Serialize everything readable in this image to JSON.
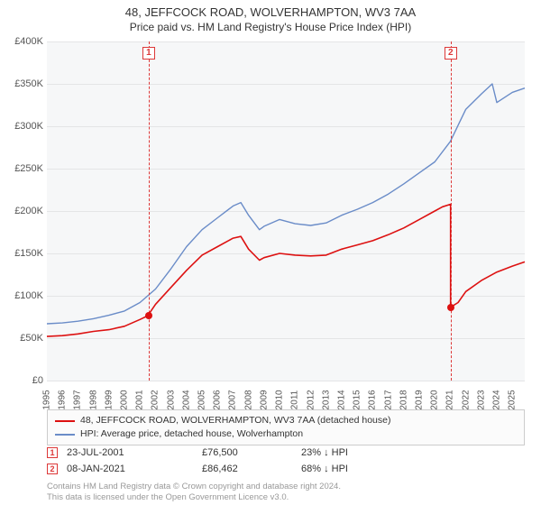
{
  "title": "48, JEFFCOCK ROAD, WOLVERHAMPTON, WV3 7AA",
  "subtitle": "Price paid vs. HM Land Registry's House Price Index (HPI)",
  "chart": {
    "background": "#f6f7f8",
    "grid_color": "#e4e5e6",
    "xlim": [
      1995,
      2025.8
    ],
    "ylim": [
      0,
      400000
    ],
    "ytick_step": 50000,
    "yticks": [
      0,
      50000,
      100000,
      150000,
      200000,
      250000,
      300000,
      350000,
      400000
    ],
    "ytick_labels": [
      "£0",
      "£50K",
      "£100K",
      "£150K",
      "£200K",
      "£250K",
      "£300K",
      "£350K",
      "£400K"
    ],
    "xticks": [
      1995,
      1996,
      1997,
      1998,
      1999,
      2000,
      2001,
      2002,
      2003,
      2004,
      2005,
      2006,
      2007,
      2008,
      2009,
      2010,
      2011,
      2012,
      2013,
      2014,
      2015,
      2016,
      2017,
      2018,
      2019,
      2020,
      2021,
      2022,
      2023,
      2024,
      2025
    ],
    "series": [
      {
        "name": "price_paid",
        "color": "#dd1111",
        "width": 1.6,
        "x": [
          1995,
          1996,
          1997,
          1998,
          1999,
          2000,
          2001,
          2001.5,
          2002,
          2003,
          2004,
          2005,
          2006,
          2007,
          2007.5,
          2008,
          2008.7,
          2009,
          2010,
          2011,
          2012,
          2013,
          2014,
          2015,
          2016,
          2017,
          2018,
          2019,
          2020,
          2020.5,
          2021.02,
          2021.02,
          2021.5,
          2022,
          2023,
          2024,
          2025,
          2025.8
        ],
        "y": [
          52000,
          53000,
          55000,
          58000,
          60000,
          64000,
          72000,
          76500,
          90000,
          110000,
          130000,
          148000,
          158000,
          168000,
          170000,
          155000,
          142000,
          145000,
          150000,
          148000,
          147000,
          148000,
          155000,
          160000,
          165000,
          172000,
          180000,
          190000,
          200000,
          205000,
          208000,
          86462,
          92000,
          105000,
          118000,
          128000,
          135000,
          140000
        ]
      },
      {
        "name": "hpi",
        "color": "#6a8cc8",
        "width": 1.4,
        "x": [
          1995,
          1996,
          1997,
          1998,
          1999,
          2000,
          2001,
          2002,
          2003,
          2004,
          2005,
          2006,
          2007,
          2007.5,
          2008,
          2008.7,
          2009,
          2010,
          2011,
          2012,
          2013,
          2014,
          2015,
          2016,
          2017,
          2018,
          2019,
          2020,
          2021,
          2022,
          2023,
          2023.7,
          2024,
          2025,
          2025.8
        ],
        "y": [
          67000,
          68000,
          70000,
          73000,
          77000,
          82000,
          92000,
          108000,
          132000,
          158000,
          178000,
          192000,
          206000,
          210000,
          195000,
          178000,
          182000,
          190000,
          185000,
          183000,
          186000,
          195000,
          202000,
          210000,
          220000,
          232000,
          245000,
          258000,
          282000,
          320000,
          338000,
          350000,
          328000,
          340000,
          345000
        ]
      }
    ],
    "events": [
      {
        "id": "1",
        "x": 2001.56,
        "date": "23-JUL-2001",
        "price": "£76,500",
        "pct": "23% ↓ HPI",
        "point_y": 76500
      },
      {
        "id": "2",
        "x": 2021.02,
        "date": "08-JAN-2021",
        "price": "£86,462",
        "pct": "68% ↓ HPI",
        "point_y": 86462
      }
    ],
    "marker_color": "#dd3838"
  },
  "legend": {
    "items": [
      {
        "color": "#dd1111",
        "label": "48, JEFFCOCK ROAD, WOLVERHAMPTON, WV3 7AA (detached house)"
      },
      {
        "color": "#6a8cc8",
        "label": "HPI: Average price, detached house, Wolverhampton"
      }
    ]
  },
  "footer1": "Contains HM Land Registry data © Crown copyright and database right 2024.",
  "footer2": "This data is licensed under the Open Government Licence v3.0."
}
